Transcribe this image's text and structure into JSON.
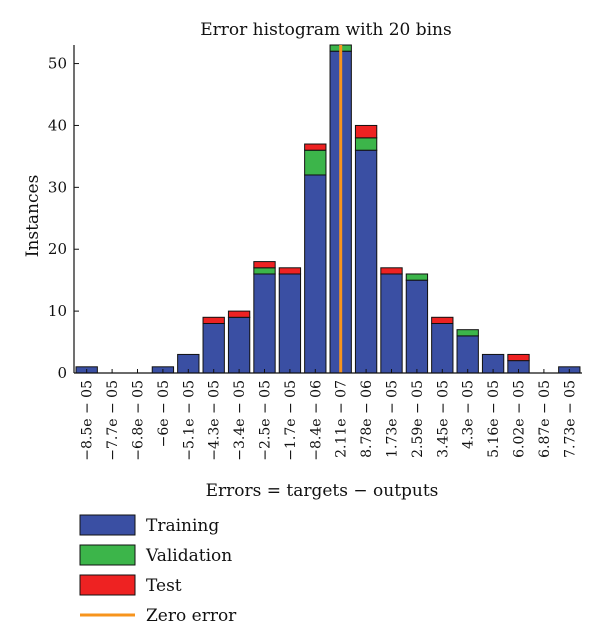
{
  "chart_data": {
    "type": "bar",
    "stacked": true,
    "title": "Error histogram with 20 bins",
    "xlabel": "Errors = targets − outputs",
    "ylabel": "Instances",
    "ylim": [
      0,
      53
    ],
    "yticks": [
      0,
      10,
      20,
      30,
      40,
      50
    ],
    "categories": [
      "−8.5e − 05",
      "−7.7e − 05",
      "−6.8e − 05",
      "−6e − 05",
      "−5.1e − 05",
      "−4.3e − 05",
      "−3.4e − 05",
      "−2.5e − 05",
      "−1.7e − 05",
      "−8.4e − 06",
      "2.11e − 07",
      "8.78e − 06",
      "1.73e − 05",
      "2.59e − 05",
      "3.45e − 05",
      "4.3e − 05",
      "5.16e − 05",
      "6.02e − 05",
      "6.87e − 05",
      "7.73e − 05"
    ],
    "series": [
      {
        "name": "Training",
        "color": "#3a4fa3",
        "values": [
          1,
          0,
          0,
          1,
          3,
          8,
          9,
          16,
          16,
          32,
          52,
          36,
          16,
          15,
          8,
          6,
          3,
          2,
          0,
          1
        ]
      },
      {
        "name": "Validation",
        "color": "#3cb54a",
        "values": [
          0,
          0,
          0,
          0,
          0,
          0,
          0,
          1,
          0,
          4,
          1,
          2,
          0,
          1,
          0,
          1,
          0,
          0,
          0,
          0
        ]
      },
      {
        "name": "Test",
        "color": "#ee2222",
        "values": [
          0,
          0,
          0,
          0,
          0,
          1,
          1,
          1,
          1,
          1,
          0,
          2,
          1,
          0,
          1,
          0,
          0,
          1,
          0,
          0
        ]
      }
    ],
    "zero_error": {
      "name": "Zero error",
      "color": "#f7941d",
      "category_index": 10
    },
    "legend": [
      "Training",
      "Validation",
      "Test",
      "Zero error"
    ],
    "legend_position": "bottom-left",
    "grid": false
  }
}
